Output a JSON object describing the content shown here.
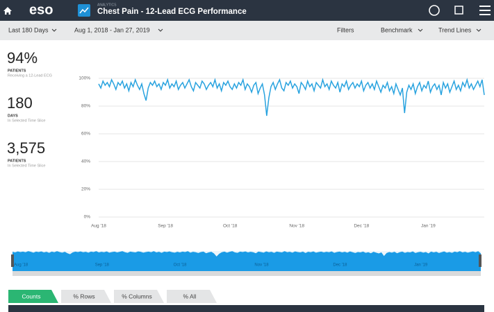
{
  "header": {
    "logo": "eso",
    "section": "ANALYTICS",
    "title": "Chest Pain - 12-Lead ECG Performance"
  },
  "toolbar": {
    "range": "Last 180 Days",
    "dates": "Aug 1, 2018  -  Jan 27, 2019",
    "filters": "Filters",
    "benchmark": "Benchmark",
    "trend": "Trend Lines"
  },
  "kpis": [
    {
      "value": "94%",
      "label": "PATIENTS",
      "note": "Receiving a 12-Lead ECG"
    },
    {
      "value": "180",
      "label": "DAYS",
      "note": "In Selected Time Slice"
    },
    {
      "value": "3,575",
      "label": "PATIENTS",
      "note": "In Selected Time Slice"
    }
  ],
  "chart_data": {
    "type": "line",
    "color": "#29a3df",
    "xlim": [
      0,
      179
    ],
    "xticks": [
      {
        "value": 0,
        "label": "Aug '18"
      },
      {
        "value": 31,
        "label": "Sep '18"
      },
      {
        "value": 61,
        "label": "Oct '18"
      },
      {
        "value": 92,
        "label": "Nov '18"
      },
      {
        "value": 122,
        "label": "Dec '18"
      },
      {
        "value": 153,
        "label": "Jan '19"
      }
    ],
    "ylim": [
      0,
      100
    ],
    "yticks": [
      {
        "value": 0,
        "label": "0%"
      },
      {
        "value": 20,
        "label": "20%"
      },
      {
        "value": 40,
        "label": "40%"
      },
      {
        "value": 60,
        "label": "60%"
      },
      {
        "value": 80,
        "label": "80%"
      },
      {
        "value": 100,
        "label": "100%"
      }
    ],
    "grid": true,
    "values": [
      96,
      93,
      98,
      95,
      97,
      94,
      99,
      96,
      92,
      97,
      95,
      98,
      93,
      96,
      91,
      97,
      94,
      99,
      95,
      92,
      96,
      89,
      84,
      93,
      97,
      95,
      98,
      94,
      96,
      92,
      97,
      95,
      99,
      93,
      96,
      94,
      98,
      92,
      95,
      97,
      93,
      96,
      99,
      94,
      91,
      97,
      95,
      93,
      98,
      96,
      92,
      95,
      97,
      94,
      99,
      93,
      96,
      91,
      97,
      95,
      98,
      94,
      92,
      96,
      93,
      97,
      95,
      99,
      92,
      96,
      94,
      90,
      95,
      97,
      89,
      93,
      96,
      88,
      73,
      86,
      94,
      97,
      92,
      96,
      99,
      93,
      91,
      97,
      95,
      98,
      93,
      96,
      94,
      89,
      97,
      95,
      92,
      98,
      94,
      96,
      91,
      97,
      95,
      93,
      99,
      94,
      96,
      92,
      98,
      95,
      93,
      97,
      90,
      96,
      94,
      98,
      92,
      95,
      97,
      93,
      96,
      94,
      98,
      91,
      95,
      97,
      93,
      96,
      92,
      98,
      94,
      90,
      95,
      93,
      97,
      91,
      94,
      89,
      96,
      92,
      88,
      93,
      75,
      90,
      95,
      92,
      96,
      89,
      94,
      97,
      91,
      95,
      93,
      98,
      90,
      94,
      96,
      92,
      95,
      88,
      97,
      93,
      96,
      90,
      94,
      98,
      92,
      95,
      91,
      97,
      94,
      99,
      93,
      96,
      92,
      95,
      98,
      94,
      99,
      88
    ]
  },
  "tabs": [
    "Counts",
    "% Rows",
    "% Columns",
    "% All"
  ]
}
